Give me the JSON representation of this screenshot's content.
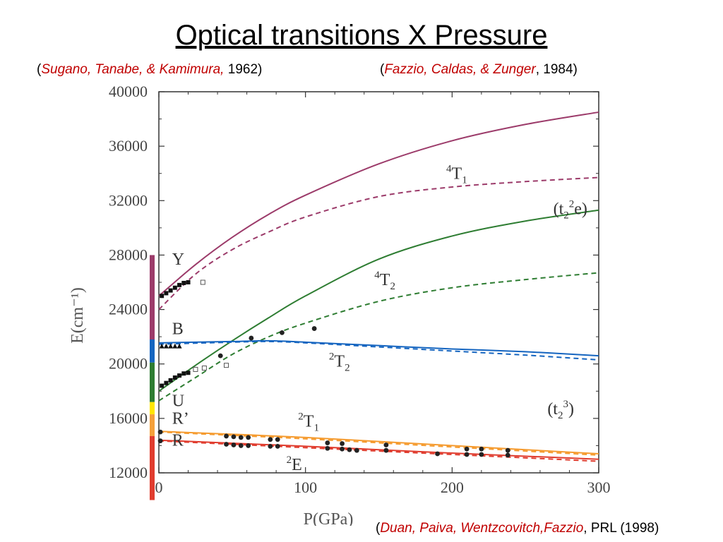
{
  "slide": {
    "title": "Optical transitions X Pressure",
    "cite1": {
      "open": "(",
      "authors": "Sugano, Tanabe, & Kamimura,",
      "rest": " 1962)"
    },
    "cite2": {
      "open": "(",
      "authors": "Fazzio, Caldas, & Zunger",
      "rest": ", 1984)"
    },
    "cite3": {
      "open": "(",
      "authors": "Duan, Paiva, Wentzcovitch,Fazzio",
      "rest": ", PRL (1998)"
    }
  },
  "chart_data": {
    "type": "line",
    "xlabel": "P(GPa)",
    "ylabel": "E(cm⁻¹)",
    "xlim": [
      0,
      300
    ],
    "ylim": [
      12000,
      40000
    ],
    "xticks": [
      0,
      100,
      200,
      300
    ],
    "yticks": [
      12000,
      16000,
      20000,
      24000,
      28000,
      32000,
      36000,
      40000
    ],
    "colors": {
      "T1": "#9c3b6a",
      "T2": "#2e7d32",
      "blue": "#1565c0",
      "orange": "#f59b2f",
      "red": "#e03c2e"
    },
    "series": [
      {
        "level": "4T1",
        "style": "solid",
        "color": "#9c3b6a",
        "x": [
          0,
          25,
          50,
          75,
          100,
          150,
          200,
          250,
          300
        ],
        "y": [
          25000,
          27300,
          29300,
          31000,
          32400,
          34700,
          36400,
          37600,
          38500
        ]
      },
      {
        "level": "4T1",
        "style": "dashed",
        "color": "#9c3b6a",
        "x": [
          0,
          25,
          50,
          75,
          100,
          150,
          200,
          250,
          300
        ],
        "y": [
          24000,
          26600,
          28400,
          29700,
          30800,
          32300,
          33000,
          33400,
          33700
        ]
      },
      {
        "level": "4T2",
        "style": "solid",
        "color": "#2e7d32",
        "x": [
          0,
          25,
          50,
          75,
          100,
          150,
          200,
          250,
          300
        ],
        "y": [
          18000,
          19900,
          21700,
          23400,
          25000,
          27700,
          29400,
          30500,
          31300
        ]
      },
      {
        "level": "4T2",
        "style": "dashed",
        "color": "#2e7d32",
        "x": [
          0,
          25,
          50,
          75,
          100,
          150,
          200,
          250,
          300
        ],
        "y": [
          17300,
          19000,
          20700,
          22000,
          23000,
          24600,
          25600,
          26200,
          26700
        ]
      },
      {
        "level": "2T2",
        "style": "solid",
        "color": "#1565c0",
        "x": [
          0,
          50,
          75,
          100,
          150,
          200,
          250,
          300
        ],
        "y": [
          21550,
          21650,
          21700,
          21600,
          21350,
          21100,
          20900,
          20600
        ]
      },
      {
        "level": "2T2",
        "style": "dashed",
        "color": "#1565c0",
        "x": [
          0,
          50,
          75,
          100,
          150,
          200,
          250,
          300
        ],
        "y": [
          21450,
          21600,
          21650,
          21550,
          21250,
          20950,
          20650,
          20300
        ]
      },
      {
        "level": "2T1",
        "style": "solid",
        "color": "#f59b2f",
        "x": [
          0,
          100,
          200,
          300
        ],
        "y": [
          15050,
          14600,
          14000,
          13400
        ]
      },
      {
        "level": "2T1",
        "style": "dashed",
        "color": "#f59b2f",
        "x": [
          0,
          100,
          200,
          300
        ],
        "y": [
          15000,
          14500,
          13900,
          13300
        ]
      },
      {
        "level": "2E",
        "style": "solid",
        "color": "#e03c2e",
        "x": [
          0,
          100,
          200,
          300
        ],
        "y": [
          14400,
          13950,
          13450,
          13000
        ]
      },
      {
        "level": "2E",
        "style": "dashed",
        "color": "#e03c2e",
        "x": [
          0,
          100,
          200,
          300
        ],
        "y": [
          14350,
          13850,
          13350,
          12850
        ]
      }
    ],
    "markers": {
      "squares_filled": [
        [
          2,
          25000
        ],
        [
          5,
          25200
        ],
        [
          8,
          25400
        ],
        [
          11,
          25600
        ],
        [
          14,
          25800
        ],
        [
          17,
          25950
        ],
        [
          20,
          26000
        ],
        [
          2,
          18400
        ],
        [
          5,
          18600
        ],
        [
          8,
          18800
        ],
        [
          11,
          19000
        ],
        [
          14,
          19150
        ],
        [
          17,
          19300
        ],
        [
          20,
          19350
        ]
      ],
      "squares_open": [
        [
          30,
          26000
        ],
        [
          25,
          19600
        ],
        [
          31,
          19700
        ],
        [
          46,
          19900
        ]
      ],
      "triangles_filled": [
        [
          2,
          21300
        ],
        [
          5,
          21300
        ],
        [
          8,
          21300
        ],
        [
          11,
          21300
        ],
        [
          14,
          21300
        ]
      ],
      "circles_filled": [
        [
          42,
          20600
        ],
        [
          63,
          21900
        ],
        [
          84,
          22300
        ],
        [
          106,
          22600
        ],
        [
          1,
          15000
        ],
        [
          1,
          14350
        ],
        [
          46,
          14700
        ],
        [
          51,
          14650
        ],
        [
          56,
          14600
        ],
        [
          61,
          14600
        ],
        [
          46,
          14100
        ],
        [
          51,
          14050
        ],
        [
          56,
          14000
        ],
        [
          61,
          14000
        ],
        [
          76,
          14450
        ],
        [
          81,
          14450
        ],
        [
          76,
          13950
        ],
        [
          81,
          13950
        ],
        [
          115,
          14200
        ],
        [
          125,
          14150
        ],
        [
          115,
          13800
        ],
        [
          125,
          13750
        ],
        [
          130,
          13700
        ],
        [
          135,
          13650
        ],
        [
          155,
          14050
        ],
        [
          155,
          13650
        ],
        [
          190,
          13400
        ],
        [
          210,
          13750
        ],
        [
          210,
          13350
        ],
        [
          220,
          13750
        ],
        [
          220,
          13350
        ],
        [
          238,
          13650
        ],
        [
          238,
          13300
        ]
      ]
    },
    "labels": [
      {
        "kind": "pair",
        "main": "T",
        "sup": "4",
        "sub": "1",
        "x": 196,
        "y": 33600
      },
      {
        "kind": "t2e",
        "x": 269,
        "y": 31000
      },
      {
        "kind": "pair",
        "main": "T",
        "sup": "4",
        "sub": "2",
        "x": 147,
        "y": 25800
      },
      {
        "kind": "pair",
        "main": "T",
        "sup": "2",
        "sub": "2",
        "x": 116,
        "y": 19800
      },
      {
        "kind": "t23",
        "x": 265,
        "y": 16300
      },
      {
        "kind": "pair",
        "main": "T",
        "sup": "2",
        "sub": "1",
        "x": 95,
        "y": 15400
      },
      {
        "kind": "pair",
        "main": "E",
        "sup": "2",
        "sub": "",
        "x": 87,
        "y": 12200
      },
      {
        "kind": "plain",
        "text": "Y",
        "x": 9,
        "y": 27300
      },
      {
        "kind": "plain",
        "text": "B",
        "x": 9,
        "y": 22200
      },
      {
        "kind": "plain",
        "text": "U",
        "x": 9,
        "y": 16900
      },
      {
        "kind": "plain",
        "text": "R’",
        "x": 9,
        "y": 15600
      },
      {
        "kind": "plain",
        "text": "R",
        "x": 9,
        "y": 14000
      }
    ],
    "spectrum_bar": [
      {
        "color": "#9c3b6a",
        "y0": 21800,
        "y1": 28000
      },
      {
        "color": "#1565c0",
        "y0": 20100,
        "y1": 21800
      },
      {
        "color": "#2e7d32",
        "y0": 17200,
        "y1": 20100
      },
      {
        "color": "#ffe600",
        "y0": 16300,
        "y1": 17200
      },
      {
        "color": "#f5a03a",
        "y0": 14700,
        "y1": 16300
      },
      {
        "color": "#e03c2e",
        "y0": 10000,
        "y1": 14700
      }
    ]
  }
}
